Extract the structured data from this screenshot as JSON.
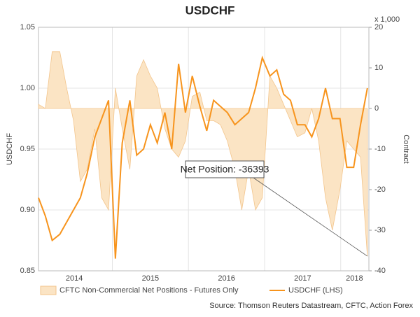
{
  "chart_data": {
    "type": "line",
    "title": "USDCHF",
    "ylabel": "USDCHF",
    "y2label": "Contract",
    "y2unit": "x 1,000",
    "x": [
      2014.03,
      2014.12,
      2014.21,
      2014.31,
      2014.4,
      2014.49,
      2014.58,
      2014.67,
      2014.77,
      2014.86,
      2014.95,
      2015.04,
      2015.13,
      2015.23,
      2015.32,
      2015.41,
      2015.5,
      2015.59,
      2015.69,
      2015.78,
      2015.87,
      2015.96,
      2016.05,
      2016.15,
      2016.24,
      2016.33,
      2016.42,
      2016.51,
      2016.61,
      2016.7,
      2016.79,
      2016.88,
      2016.97,
      2017.07,
      2017.16,
      2017.25,
      2017.34,
      2017.43,
      2017.53,
      2017.62,
      2017.71,
      2017.8,
      2017.89,
      2017.99,
      2018.08,
      2018.17,
      2018.26,
      2018.35
    ],
    "series": [
      {
        "name": "CFTC Non-Commercial Net Positions - Futures Only",
        "type": "area",
        "axis": "y2",
        "color": "#f3c58c",
        "fill": "#fbe4c4",
        "values": [
          1,
          0,
          14,
          14,
          5,
          -3,
          -18,
          -15,
          -5,
          -22,
          -25,
          5,
          -5,
          -15,
          8,
          12,
          8,
          5,
          -5,
          -10,
          -12,
          -8,
          3,
          4,
          -3,
          -3,
          -4,
          -8,
          -15,
          -25,
          -15,
          -25,
          -22,
          8,
          5,
          1,
          -3,
          -7,
          -6,
          0,
          -8,
          -22,
          -30,
          -20,
          -8,
          -10,
          -12,
          -36.393
        ]
      },
      {
        "name": "USDCHF (LHS)",
        "type": "line",
        "color": "#f7941d",
        "values": [
          0.91,
          0.895,
          0.875,
          0.88,
          0.89,
          0.9,
          0.91,
          0.93,
          0.96,
          0.975,
          0.99,
          0.86,
          0.955,
          0.99,
          0.945,
          0.95,
          0.97,
          0.955,
          0.98,
          0.95,
          1.02,
          0.98,
          1.01,
          0.985,
          0.965,
          0.99,
          0.985,
          0.98,
          0.97,
          0.975,
          0.98,
          1.0,
          1.025,
          1.01,
          1.015,
          0.995,
          0.99,
          0.97,
          0.97,
          0.96,
          0.975,
          1.0,
          0.975,
          0.975,
          0.935,
          0.935,
          0.97,
          1.0
        ]
      }
    ],
    "xlim": [
      2014.03,
      2018.37
    ],
    "xticks": [
      {
        "value": 2014.5,
        "label": "2014"
      },
      {
        "value": 2015.5,
        "label": "2015"
      },
      {
        "value": 2016.5,
        "label": "2016"
      },
      {
        "value": 2017.5,
        "label": "2017"
      },
      {
        "value": 2018.18,
        "label": "2018"
      }
    ],
    "xgrid": [
      2015,
      2016,
      2017,
      2018
    ],
    "ylim": [
      0.85,
      1.05
    ],
    "yticks": [
      0.85,
      {
        "value": 0.9,
        "label": "0.90"
      },
      0.95,
      {
        "value": 1.0,
        "label": "1.00"
      },
      1.05
    ],
    "y2lim": [
      -40,
      20
    ],
    "y2ticks": [
      -40,
      -30,
      -20,
      -10,
      0,
      10,
      20
    ],
    "grid": true,
    "legend": "bottom",
    "annotation": "Net Position: -36393",
    "source": "Source: Thomson Reuters Datastream, CFTC, Action Forex"
  }
}
